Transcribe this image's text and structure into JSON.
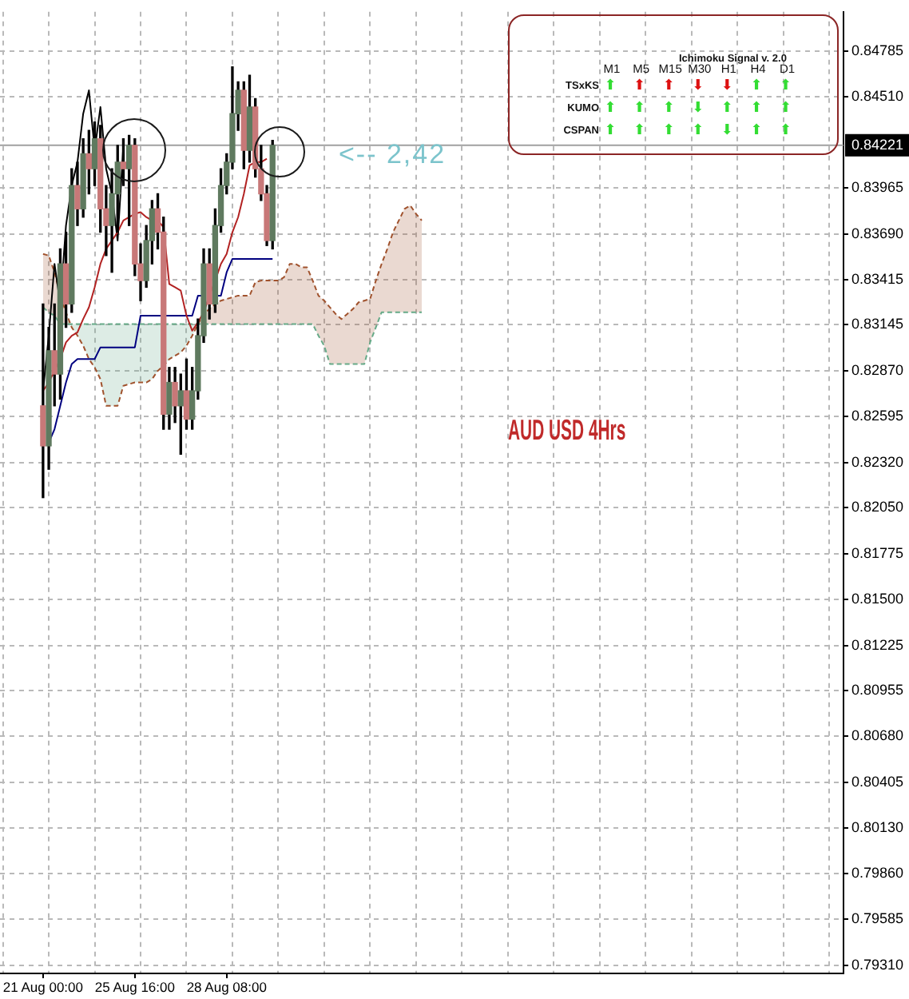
{
  "chart_data": [
    {
      "type": "candlestick",
      "title": "AUD USD 4Hrs",
      "annotations": [
        "<-- 2,42"
      ],
      "categories": [
        null,
        null,
        null,
        null,
        null,
        null,
        null,
        "21 Aug 00:00",
        null,
        null,
        null,
        null,
        null,
        null,
        null,
        null,
        null,
        null,
        null,
        null,
        null,
        null,
        null,
        "25 Aug 16:00",
        null,
        null,
        null,
        null,
        null,
        null,
        null,
        null,
        null,
        null,
        null,
        null,
        null,
        null,
        null,
        "28 Aug 08:00",
        null,
        null,
        null,
        null,
        null,
        null,
        null,
        null,
        null,
        null,
        null,
        null,
        null,
        null,
        null,
        null,
        null,
        null,
        null,
        null,
        null,
        null,
        null,
        null,
        null,
        null,
        null,
        null,
        null,
        null,
        null,
        null,
        null,
        null,
        null,
        null,
        null,
        null,
        null,
        null,
        null,
        null,
        null,
        null,
        null,
        null,
        null,
        null,
        null,
        null,
        null,
        null,
        null,
        null,
        null,
        null,
        null,
        null,
        null,
        null,
        null,
        null,
        null,
        null,
        null,
        null,
        null,
        null,
        null,
        null,
        null,
        null,
        null,
        null,
        null,
        null,
        null,
        null,
        null,
        null,
        null,
        null,
        null,
        null,
        null,
        null,
        null,
        null,
        null,
        null,
        null,
        null,
        null,
        null,
        null,
        null,
        null,
        null,
        null,
        null,
        null,
        null,
        null,
        null,
        null,
        null,
        null
      ],
      "ohlc": [
        null,
        null,
        null,
        null,
        null,
        null,
        null,
        [
          0.8266,
          0.8327,
          0.8211,
          0.8242
        ],
        [
          0.8242,
          0.8313,
          0.8228,
          0.8299
        ],
        [
          0.8299,
          0.8327,
          0.8266,
          0.8285
        ],
        [
          0.8285,
          0.836,
          0.827,
          0.8351
        ],
        [
          0.8351,
          0.837,
          0.8313,
          0.8327
        ],
        [
          0.8327,
          0.8408,
          0.8322,
          0.8398
        ],
        [
          0.8398,
          0.8412,
          0.8374,
          0.8384
        ],
        [
          0.8384,
          0.8426,
          0.8379,
          0.8417
        ],
        [
          0.8417,
          0.8431,
          0.8393,
          0.8408
        ],
        [
          0.8408,
          0.8436,
          0.8398,
          0.8426
        ],
        [
          0.8426,
          0.8434,
          0.837,
          0.8384
        ],
        [
          0.8384,
          0.8398,
          0.8356,
          0.8374
        ],
        [
          0.8374,
          0.8408,
          0.8346,
          0.8393
        ],
        [
          0.8393,
          0.8422,
          0.837,
          0.8412
        ],
        [
          0.8412,
          0.8426,
          0.8398,
          0.8408
        ],
        [
          0.8408,
          0.8428,
          0.8374,
          0.8422
        ],
        [
          0.8422,
          0.8426,
          0.8344,
          0.8351
        ],
        [
          0.8351,
          0.8363,
          0.8329,
          0.8341
        ],
        [
          0.8341,
          0.8374,
          0.8337,
          0.8365
        ],
        [
          0.8365,
          0.8389,
          0.8351,
          0.8384
        ],
        [
          0.8384,
          0.8393,
          0.836,
          0.837
        ],
        [
          0.837,
          0.8379,
          0.8252,
          0.8261
        ],
        [
          0.8261,
          0.8289,
          0.8252,
          0.828
        ],
        [
          0.828,
          0.8289,
          0.8256,
          0.8266
        ],
        [
          0.8266,
          0.8285,
          0.8237,
          0.8275
        ],
        [
          0.8275,
          0.8294,
          0.8252,
          0.8258
        ],
        [
          0.8258,
          0.8289,
          0.8252,
          0.8275
        ],
        [
          0.8275,
          0.8318,
          0.827,
          0.8308
        ],
        [
          0.8308,
          0.836,
          0.8304,
          0.8351
        ],
        [
          0.8351,
          0.836,
          0.8318,
          0.8327
        ],
        [
          0.8327,
          0.8384,
          0.8322,
          0.8374
        ],
        [
          0.8374,
          0.8408,
          0.837,
          0.8398
        ],
        [
          0.8398,
          0.8417,
          0.8393,
          0.8412
        ],
        [
          0.8412,
          0.8469,
          0.8408,
          0.8441
        ],
        [
          0.8441,
          0.846,
          0.8431,
          0.8455
        ],
        [
          0.8455,
          0.846,
          0.8408,
          0.8419
        ],
        [
          0.8419,
          0.8464,
          0.8412,
          0.8445
        ],
        [
          0.8445,
          0.845,
          0.8403,
          0.8408
        ],
        [
          0.8408,
          0.8422,
          0.8389,
          0.8393
        ],
        [
          0.8393,
          0.8398,
          0.8362,
          0.8365
        ],
        [
          0.8365,
          0.8425,
          0.836,
          0.8422
        ],
        null,
        null,
        null,
        null,
        null,
        null,
        null,
        null,
        null,
        null,
        null,
        null,
        null,
        null,
        null,
        null,
        null,
        null,
        null,
        null,
        null,
        null,
        null,
        null,
        null,
        null,
        null,
        null,
        null,
        null,
        null,
        null,
        null,
        null,
        null,
        null,
        null,
        null,
        null,
        null,
        null,
        null,
        null,
        null,
        null,
        null,
        null,
        null,
        null,
        null,
        null,
        null,
        null,
        null,
        null,
        null,
        null,
        null,
        null,
        null,
        null,
        null,
        null,
        null,
        null,
        null,
        null,
        null,
        null,
        null,
        null,
        null,
        null,
        null,
        null,
        null,
        null,
        null,
        null,
        null,
        null,
        null,
        null,
        null,
        null,
        null,
        null,
        null,
        null,
        null,
        null,
        null,
        null,
        null,
        null,
        null,
        null,
        null,
        null
      ],
      "colors": [
        null,
        null,
        null,
        null,
        null,
        null,
        null,
        "#c87878",
        "#5f7a5f",
        "#c87878",
        "#5f7a5f",
        "#c87878",
        "#5f7a5f",
        "#c87878",
        "#5f7a5f",
        "#c87878",
        "#5f7a5f",
        "#c87878",
        "#c87878",
        "#5f7a5f",
        "#5f7a5f",
        "#c87878",
        "#5f7a5f",
        "#c87878",
        "#c87878",
        "#5f7a5f",
        "#5f7a5f",
        "#c87878",
        "#c87878",
        "#5f7a5f",
        "#c87878",
        "#5f7a5f",
        "#c87878",
        "#5f7a5f",
        "#5f7a5f",
        "#5f7a5f",
        "#c87878",
        "#5f7a5f",
        "#5f7a5f",
        "#5f7a5f",
        "#5f7a5f",
        "#5f7a5f",
        "#c87878",
        "#5f7a5f",
        "#c87878",
        "#c87878",
        "#c87878",
        "#5f7a5f",
        null,
        null,
        null,
        null,
        null,
        null,
        null,
        null,
        null,
        null,
        null,
        null,
        null,
        null,
        null,
        null,
        null,
        null,
        null,
        null,
        null,
        null,
        null,
        null,
        null,
        null,
        null,
        null,
        null,
        null,
        null,
        null,
        null,
        null,
        null,
        null,
        null,
        null,
        null,
        null,
        null,
        null,
        null,
        null,
        null,
        null,
        null,
        null,
        null,
        null,
        null,
        null,
        null,
        null,
        null,
        null,
        null,
        null,
        null,
        null,
        null,
        null,
        null,
        null,
        null,
        null,
        null,
        null,
        null,
        null,
        null,
        null,
        null,
        null,
        null,
        null,
        null,
        null,
        null,
        null,
        null,
        null,
        null,
        null,
        null,
        null,
        null,
        null,
        null,
        null,
        null,
        null,
        null,
        null,
        null,
        null,
        null,
        null,
        null
      ],
      "series": [
        {
          "type": "line",
          "color": "#b22222",
          "values": [
            null,
            null,
            null,
            null,
            null,
            null,
            null,
            0.8275,
            0.828,
            0.8287,
            0.8294,
            0.8304,
            0.8308,
            0.831,
            0.8318,
            0.8325,
            0.8337,
            0.8351,
            0.836,
            0.8365,
            0.837,
            0.8377,
            0.8379,
            0.8381,
            0.8382,
            0.8379,
            0.8377,
            0.8377,
            0.8373,
            0.8339,
            0.8337,
            0.8335,
            0.832,
            0.8311,
            0.8316,
            0.8322,
            0.8332,
            0.8341,
            0.8351,
            0.8357,
            0.837,
            0.8379,
            0.8393,
            0.841,
            0.8412,
            0.8412,
            0.8414,
            null,
            null,
            null,
            null,
            null,
            null,
            null,
            null,
            null,
            null,
            null,
            null,
            null,
            null,
            null,
            null,
            null,
            null,
            null,
            null,
            null,
            null,
            null,
            null,
            null,
            null,
            null,
            null,
            null,
            null,
            null,
            null,
            null,
            null,
            null,
            null,
            null,
            null,
            null,
            null,
            null,
            null,
            null,
            null,
            null,
            null,
            null,
            null,
            null,
            null,
            null,
            null,
            null,
            null,
            null,
            null,
            null,
            null,
            null,
            null,
            null,
            null,
            null,
            null,
            null,
            null,
            null,
            null,
            null,
            null,
            null,
            null,
            null,
            null,
            null,
            null,
            null,
            null,
            null,
            null,
            null,
            null,
            null,
            null,
            null,
            null,
            null,
            null,
            null,
            null,
            null,
            null,
            null,
            null,
            null,
            null,
            null,
            null,
            null,
            null
          ]
        },
        {
          "type": "line",
          "color": "#000080",
          "values": [
            null,
            null,
            null,
            null,
            null,
            null,
            null,
            null,
            0.8244,
            0.8252,
            0.8266,
            0.828,
            0.8291,
            0.8294,
            0.8294,
            0.8294,
            0.8294,
            0.8301,
            0.8301,
            0.8301,
            0.8301,
            0.8301,
            0.8301,
            0.8301,
            0.832,
            0.832,
            0.832,
            0.832,
            0.832,
            0.832,
            0.832,
            0.832,
            0.832,
            0.832,
            0.8332,
            0.8332,
            null,
            0.8332,
            0.8332,
            0.8346,
            0.8354,
            0.8354,
            0.8354,
            0.8354,
            0.8354,
            0.8354,
            0.8354,
            0.8354,
            null,
            null,
            null,
            null,
            null,
            null,
            null,
            null,
            null,
            null,
            null,
            null,
            null,
            null,
            null,
            null,
            null,
            null,
            null,
            null,
            null,
            null,
            null,
            null,
            null,
            null,
            null,
            null,
            null,
            null,
            null,
            null,
            null,
            null,
            null,
            null,
            null,
            null,
            null,
            null,
            null,
            null,
            null,
            null,
            null,
            null,
            null,
            null,
            null,
            null,
            null,
            null,
            null,
            null,
            null,
            null,
            null,
            null,
            null,
            null,
            null,
            null,
            null,
            null,
            null,
            null,
            null,
            null,
            null,
            null,
            null,
            null,
            null,
            null,
            null,
            null,
            null,
            null,
            null,
            null,
            null,
            null,
            null,
            null,
            null,
            null,
            null,
            null,
            null,
            null,
            null,
            null,
            null,
            null,
            null,
            null,
            null,
            null,
            null
          ]
        },
        {
          "type": "line",
          "color": "#000000",
          "values": [
            null,
            null,
            null,
            null,
            null,
            null,
            null,
            0.8275,
            0.8308,
            0.8351,
            0.8327,
            0.8374,
            0.8398,
            0.8412,
            0.8441,
            0.8455,
            0.8419,
            0.8445,
            0.8408,
            0.8393,
            0.8365,
            0.8422,
            null,
            null,
            null,
            null,
            null,
            null,
            null,
            null,
            null,
            null,
            null,
            null,
            null,
            null,
            null,
            null,
            null,
            null,
            null,
            null,
            null,
            null,
            null,
            null,
            null,
            null,
            null,
            null,
            null,
            null,
            null,
            null,
            null,
            null,
            null,
            null,
            null,
            null,
            null,
            null,
            null,
            null,
            null,
            null,
            null,
            null,
            null,
            null,
            null,
            null,
            null,
            null,
            null,
            null,
            null,
            null,
            null,
            null,
            null,
            null,
            null,
            null,
            null,
            null,
            null,
            null,
            null,
            null,
            null,
            null,
            null,
            null,
            null,
            null,
            null,
            null,
            null,
            null,
            null,
            null,
            null,
            null,
            null,
            null,
            null,
            null,
            null,
            null,
            null,
            null,
            null,
            null,
            null,
            null,
            null,
            null,
            null,
            null,
            null,
            null,
            null,
            null,
            null,
            null,
            null,
            null,
            null,
            null,
            null,
            null,
            null,
            null,
            null,
            null,
            null,
            null,
            null,
            null,
            null,
            null,
            null,
            null,
            null,
            null,
            null
          ]
        },
        {
          "type": "line",
          "color": "#a0522d",
          "line_style": "dashed",
          "values": [
            null,
            null,
            null,
            null,
            null,
            null,
            null,
            0.8357,
            0.8356,
            0.8346,
            0.8332,
            0.8322,
            0.8313,
            0.8308,
            0.8302,
            0.8294,
            0.8289,
            0.8282,
            0.8266,
            0.8266,
            0.8266,
            0.8278,
            0.8279,
            0.828,
            0.828,
            0.828,
            0.8282,
            0.8287,
            0.829,
            0.8294,
            0.8296,
            0.8298,
            0.8302,
            0.8308,
            0.8315,
            0.8321,
            0.8324,
            0.8327,
            0.8329,
            0.833,
            0.8331,
            0.8332,
            0.8332,
            0.8332,
            0.834,
            0.8341,
            0.8341,
            0.8341,
            0.8341,
            0.8343,
            0.8351,
            0.8351,
            0.8349,
            0.8349,
            0.8341,
            0.8332,
            0.8329,
            0.8325,
            0.8321,
            0.8318,
            0.8321,
            0.8324,
            0.8328,
            0.8329,
            0.833,
            0.8341,
            0.8351,
            0.836,
            0.837,
            0.8377,
            0.8384,
            0.8386,
            0.8381,
            0.8377,
            null,
            null,
            null,
            null,
            null,
            null,
            null,
            null,
            null,
            null,
            null,
            null,
            null,
            null,
            null,
            null,
            null,
            null,
            null,
            null,
            null,
            null,
            null,
            null,
            null,
            null,
            null,
            null,
            null,
            null,
            null,
            null,
            null,
            null,
            null,
            null,
            null,
            null,
            null,
            null,
            null,
            null,
            null,
            null,
            null,
            null,
            null,
            null,
            null,
            null,
            null,
            null,
            null,
            null,
            null,
            null,
            null,
            null,
            null,
            null,
            null,
            null,
            null,
            null,
            null,
            null,
            null,
            null,
            null,
            null,
            null,
            null,
            null
          ],
          "lower": [
            null,
            null,
            null,
            null,
            null,
            null,
            null,
            0.8325,
            0.8322,
            0.832,
            0.8315,
            0.8315,
            0.8315,
            null,
            null,
            null,
            null,
            null,
            null,
            null,
            null,
            null,
            null,
            null,
            null,
            null,
            null,
            null,
            null,
            null,
            null,
            null,
            null,
            null,
            0.8315,
            0.8315,
            0.8315,
            0.8315,
            0.8315,
            0.8315,
            0.8315,
            0.8315,
            0.8315,
            0.8315,
            0.8315,
            0.8315,
            0.8315,
            0.8315,
            0.8315,
            0.8315,
            0.8315,
            0.8315,
            0.8315,
            0.8315,
            0.8315,
            0.8308,
            0.8302,
            0.8291,
            0.8291,
            0.8291,
            0.8291,
            0.8291,
            0.8291,
            0.8291,
            0.8304,
            0.8313,
            0.8322,
            0.8322,
            0.8322,
            0.8322,
            0.8322,
            0.8322,
            0.8322,
            0.8322,
            null,
            null,
            null,
            null,
            null,
            null,
            null,
            null,
            null,
            null,
            null,
            null,
            null,
            null,
            null,
            null,
            null,
            null,
            null,
            null,
            null,
            null,
            null,
            null,
            null,
            null,
            null,
            null,
            null,
            null,
            null,
            null,
            null,
            null,
            null,
            null,
            null,
            null,
            null,
            null,
            null,
            null,
            null,
            null,
            null,
            null,
            null,
            null,
            null,
            null,
            null,
            null,
            null,
            null,
            null,
            null,
            null,
            null,
            null,
            null,
            null,
            null,
            null,
            null,
            null,
            null,
            null,
            null,
            null,
            null,
            null,
            null,
            null
          ],
          "upper": [
            null,
            null,
            null,
            null,
            null,
            null,
            null,
            0.8357,
            0.8356,
            0.8346,
            0.8332,
            0.8322,
            0.8313,
            null,
            null,
            null,
            null,
            null,
            null,
            null,
            null,
            null,
            null,
            null,
            null,
            null,
            null,
            null,
            null,
            null,
            null,
            null,
            null,
            null,
            0.8315,
            0.8321,
            0.8324,
            0.8327,
            0.8329,
            0.833,
            0.8331,
            0.8332,
            0.8332,
            0.8332,
            0.834,
            0.8341,
            0.8341,
            0.8341,
            0.8341,
            0.8343,
            0.8351,
            0.8351,
            0.8349,
            0.8349,
            0.8341,
            0.8332,
            0.8329,
            0.8325,
            0.8321,
            0.8318,
            0.8321,
            0.8324,
            0.8328,
            0.8329,
            0.833,
            0.8341,
            0.8351,
            0.836,
            0.837,
            0.8377,
            0.8384,
            0.8386,
            0.8381,
            0.8377,
            null,
            null,
            null,
            null,
            null,
            null,
            null,
            null,
            null,
            null,
            null,
            null,
            null,
            null,
            null,
            null,
            null,
            null,
            null,
            null,
            null,
            null,
            null,
            null,
            null,
            null,
            null,
            null,
            null,
            null,
            null,
            null,
            null,
            null,
            null,
            null,
            null,
            null,
            null,
            null,
            null,
            null,
            null,
            null,
            null,
            null,
            null,
            null,
            null,
            null,
            null,
            null,
            null,
            null,
            null,
            null,
            null,
            null,
            null,
            null,
            null,
            null,
            null,
            null,
            null,
            null,
            null,
            null,
            null,
            null,
            null,
            null,
            null
          ]
        },
        {
          "type": "line",
          "color": "#66aa88",
          "line_style": "dashed",
          "values": [
            null,
            null,
            null,
            null,
            null,
            null,
            null,
            0.8325,
            0.8322,
            0.832,
            0.8315,
            0.8315,
            0.8315,
            0.8315,
            0.8315,
            0.8315,
            0.8315,
            0.8315,
            0.8315,
            0.8315,
            0.8315,
            0.8315,
            0.8315,
            0.8315,
            0.8315,
            0.8315,
            0.8315,
            0.8315,
            0.8315,
            0.8315,
            0.8315,
            0.8315,
            0.8315,
            0.8315,
            0.8315,
            0.8315,
            0.8315,
            0.8315,
            0.8315,
            0.8315,
            0.8315,
            0.8315,
            0.8315,
            0.8315,
            0.8315,
            0.8315,
            0.8315,
            0.8315,
            0.8315,
            0.8315,
            0.8315,
            0.8315,
            0.8315,
            0.8315,
            0.8315,
            0.8308,
            0.8302,
            0.8291,
            0.8291,
            0.8291,
            0.8291,
            0.8291,
            0.8291,
            0.8291,
            0.8304,
            0.8313,
            0.8322,
            0.8322,
            0.8322,
            0.8322,
            0.8322,
            0.8322,
            0.8322,
            0.8322,
            null,
            null,
            null,
            null,
            null,
            null,
            null,
            null,
            null,
            null,
            null,
            null,
            null,
            null,
            null,
            null,
            null,
            null,
            null,
            null,
            null,
            null,
            null,
            null,
            null,
            null,
            null,
            null,
            null,
            null,
            null,
            null,
            null,
            null,
            null,
            null,
            null,
            null,
            null,
            null,
            null,
            null,
            null,
            null,
            null,
            null,
            null,
            null,
            null,
            null,
            null,
            null,
            null,
            null,
            null,
            null,
            null,
            null,
            null,
            null,
            null,
            null,
            null,
            null,
            null,
            null,
            null,
            null,
            null,
            null,
            null,
            null,
            null
          ],
          "lower": [
            null,
            null,
            null,
            null,
            null,
            null,
            null,
            null,
            null,
            null,
            null,
            0.8322,
            0.8313,
            0.8308,
            0.8302,
            0.8294,
            0.8289,
            0.8282,
            0.8266,
            0.8266,
            0.8266,
            0.8278,
            0.8279,
            0.828,
            0.828,
            0.828,
            0.8282,
            0.8287,
            0.829,
            0.8294,
            0.8296,
            0.8298,
            0.8302,
            0.8308,
            0.8315,
            null,
            null,
            null,
            null,
            null,
            null,
            null,
            null,
            null,
            null,
            null,
            null,
            null,
            null,
            null,
            null,
            null,
            null,
            null,
            null,
            null,
            null,
            null,
            null,
            null,
            null,
            null,
            null,
            null,
            null,
            null,
            null,
            null,
            null,
            null,
            null,
            null,
            null,
            null,
            null,
            null,
            null,
            null,
            null,
            null,
            null,
            null,
            null,
            null,
            null,
            null,
            null,
            null,
            null,
            null,
            null,
            null,
            null,
            null,
            null,
            null,
            null,
            null,
            null,
            null,
            null,
            null,
            null,
            null,
            null,
            null,
            null,
            null,
            null,
            null,
            null,
            null,
            null,
            null,
            null,
            null,
            null,
            null,
            null,
            null,
            null,
            null,
            null,
            null,
            null,
            null,
            null,
            null,
            null,
            null,
            null,
            null,
            null,
            null,
            null,
            null,
            null,
            null,
            null,
            null,
            null,
            null,
            null,
            null,
            null,
            null,
            null
          ],
          "upper": [
            null,
            null,
            null,
            null,
            null,
            null,
            null,
            null,
            null,
            null,
            null,
            0.8315,
            0.8315,
            0.8315,
            0.8315,
            0.8315,
            0.8315,
            0.8315,
            0.8315,
            0.8315,
            0.8315,
            0.8315,
            0.8315,
            0.8315,
            0.8315,
            0.8315,
            0.8315,
            0.8315,
            0.8315,
            0.8315,
            0.8315,
            0.8315,
            0.8315,
            0.8315,
            0.8315,
            null,
            null,
            null,
            null,
            null,
            null,
            null,
            null,
            null,
            null,
            null,
            null,
            null,
            null,
            null,
            null,
            null,
            null,
            null,
            null,
            null,
            null,
            null,
            null,
            null,
            null,
            null,
            null,
            null,
            null,
            null,
            null,
            null,
            null,
            null,
            null,
            null,
            null,
            null,
            null,
            null,
            null,
            null,
            null,
            null,
            null,
            null,
            null,
            null,
            null,
            null,
            null,
            null,
            null,
            null,
            null,
            null,
            null,
            null,
            null,
            null,
            null,
            null,
            null,
            null,
            null,
            null,
            null,
            null,
            null,
            null,
            null,
            null,
            null,
            null,
            null,
            null,
            null,
            null,
            null,
            null,
            null,
            null,
            null,
            null,
            null,
            null,
            null,
            null,
            null,
            null,
            null,
            null,
            null,
            null,
            null,
            null,
            null,
            null,
            null,
            null,
            null,
            null,
            null,
            null,
            null,
            null,
            null,
            null,
            null,
            null,
            null
          ]
        }
      ],
      "ylim": [
        0.7926,
        0.8502
      ],
      "yticks": [
        {
          "value": 0.7931,
          "label": "0.79310"
        },
        0.79585,
        {
          "value": 0.7986,
          "label": "0.79860"
        },
        {
          "value": 0.8013,
          "label": "0.80130"
        },
        0.80405,
        {
          "value": 0.8068,
          "label": "0.80680"
        },
        0.80955,
        0.81225,
        {
          "value": 0.815,
          "label": "0.81500"
        },
        0.81775,
        {
          "value": 0.8205,
          "label": "0.82050"
        },
        {
          "value": 0.8232,
          "label": "0.82320"
        },
        0.82595,
        {
          "value": 0.8287,
          "label": "0.82870"
        },
        0.83145,
        0.83415,
        {
          "value": 0.8369,
          "label": "0.83690"
        },
        0.83965,
        {
          "value": 0.8451,
          "label": "0.84510"
        },
        0.84785
      ],
      "grid": true,
      "marker": "none",
      "ref_lines": [
        {
          "axis": "y",
          "value": 0.84221,
          "label": "0.84221",
          "color": "#a0a0a0"
        }
      ]
    },
    {
      "type": "other",
      "title": "Ichimoku Signal v. 2.0",
      "categories": [
        "M1",
        "M5",
        "M15",
        "M30",
        "H1",
        "H4",
        "D1"
      ],
      "y_categories": [
        "TSxKS",
        "KUMO",
        "CSPAN"
      ],
      "cell_labels": [
        [
          "⬆",
          "⬆",
          "⬆",
          "⬇",
          "⬇",
          "⬆",
          "⬆"
        ],
        [
          "⬆",
          "⬆",
          "⬆",
          "⬇",
          "⬆",
          "⬆",
          "⬆"
        ],
        [
          "⬆",
          "⬆",
          "⬆",
          "⬆",
          "⬇",
          "⬆",
          "⬆"
        ]
      ],
      "colors": [
        [
          "#33dd33",
          "#dd1111",
          "#dd1111",
          "#dd1111",
          "#dd1111",
          "#33dd33",
          "#33dd33"
        ],
        [
          "#33dd33",
          "#33dd33",
          "#33dd33",
          "#33dd33",
          "#33dd33",
          "#33dd33",
          "#33dd33"
        ],
        [
          "#33dd33",
          "#33dd33",
          "#33dd33",
          "#33dd33",
          "#33dd33",
          "#33dd33",
          "#33dd33"
        ]
      ]
    }
  ]
}
